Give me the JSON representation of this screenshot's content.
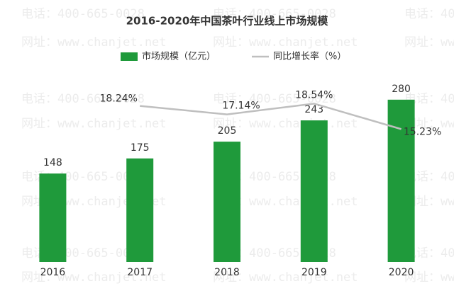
{
  "chart_data": {
    "type": "bar_line",
    "title": "2016-2020年中国茶叶行业线上市场规模",
    "watermark": [
      "电话：400-665-0028",
      "网址：www.chanjet.net"
    ],
    "categories": [
      "2016",
      "2017",
      "2018",
      "2019",
      "2020"
    ],
    "series": [
      {
        "name": "市场规模（亿元）",
        "type": "bar",
        "color": "#1f9a3b",
        "values": [
          148,
          175,
          205,
          243,
          280
        ]
      },
      {
        "name": "同比增长率（%）",
        "type": "line",
        "axis": "y2",
        "color": "#bfbfbf",
        "values": [
          null,
          18.24,
          17.14,
          18.54,
          15.23
        ],
        "value_labels": [
          null,
          "18.24%",
          "17.14%",
          "18.54%",
          "15.23%"
        ]
      }
    ],
    "ylim": [
      -10,
      300
    ],
    "y2lim": [
      -2,
      20.5
    ],
    "legend": "top"
  }
}
